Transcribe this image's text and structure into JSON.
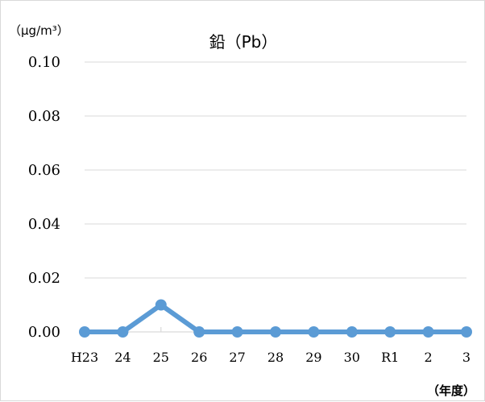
{
  "chart_data": {
    "type": "line",
    "title": "鉛（Pb）",
    "ylabel": "（µg/m³）",
    "xlabel": "（年度）",
    "categories": [
      "H23",
      "24",
      "25",
      "26",
      "27",
      "28",
      "29",
      "30",
      "R1",
      "2",
      "3"
    ],
    "series": [
      {
        "values": [
          0.0,
          0.0,
          0.01,
          0.0,
          0.0,
          0.0,
          0.0,
          0.0,
          0.0,
          0.0,
          0.0
        ],
        "color": "#5b9bd5"
      }
    ],
    "ylim": [
      0,
      0.1
    ],
    "yticks": [
      "0.00",
      "0.02",
      "0.04",
      "0.06",
      "0.08",
      "0.10"
    ],
    "grid": true,
    "legend": "none"
  }
}
